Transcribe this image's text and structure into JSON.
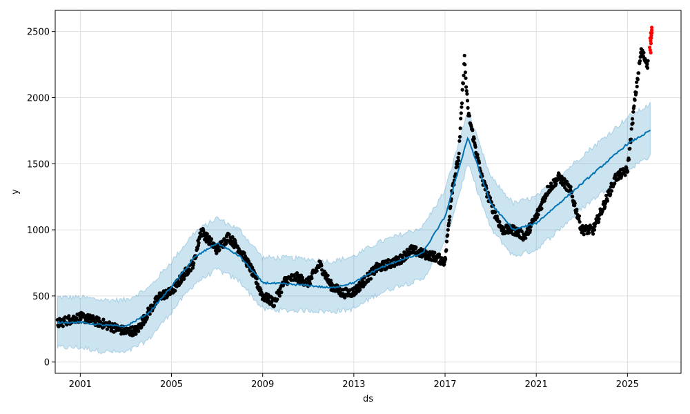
{
  "chart_data": {
    "type": "scatter",
    "xlabel": "ds",
    "ylabel": "y",
    "x_ticks": [
      "2001",
      "2005",
      "2009",
      "2013",
      "2017",
      "2021",
      "2025"
    ],
    "y_ticks": [
      0,
      500,
      1000,
      1500,
      2000,
      2500
    ],
    "xlim": [
      1999.9,
      2027.35
    ],
    "ylim": [
      -85,
      2660
    ],
    "grid": true,
    "colors": {
      "observed": "#000000",
      "forecast_line": "#0072b2",
      "uncertainty_band": "#0072b2",
      "recent_points": "#ff0000"
    },
    "series": [
      {
        "key": "observed",
        "x": [
          2000.0,
          2000.5,
          2001.0,
          2001.5,
          2002.0,
          2002.5,
          2003.0,
          2003.5,
          2004.0,
          2004.5,
          2005.0,
          2005.5,
          2006.0,
          2006.3,
          2006.5,
          2007.0,
          2007.5,
          2008.0,
          2008.5,
          2009.0,
          2009.5,
          2010.0,
          2010.5,
          2011.0,
          2011.5,
          2012.0,
          2012.5,
          2013.0,
          2013.5,
          2014.0,
          2014.5,
          2015.0,
          2015.5,
          2016.0,
          2016.5,
          2017.0,
          2017.3,
          2017.6,
          2017.85,
          2018.0,
          2018.3,
          2018.6,
          2019.0,
          2019.5,
          2020.0,
          2020.5,
          2021.0,
          2021.5,
          2022.0,
          2022.5,
          2023.0,
          2023.5,
          2024.0,
          2024.5,
          2025.0,
          2025.3,
          2025.6,
          2025.9
        ],
        "y": [
          290,
          320,
          340,
          320,
          290,
          260,
          230,
          240,
          380,
          500,
          530,
          650,
          760,
          1000,
          950,
          850,
          950,
          850,
          700,
          500,
          450,
          620,
          640,
          600,
          740,
          580,
          520,
          530,
          620,
          710,
          740,
          770,
          850,
          820,
          800,
          760,
          1300,
          1550,
          2300,
          1900,
          1650,
          1400,
          1200,
          1000,
          1000,
          950,
          1100,
          1300,
          1400,
          1300,
          1000,
          1000,
          1200,
          1400,
          1450,
          1950,
          2350,
          2250
        ]
      },
      {
        "key": "recent_points",
        "x": [
          2026.0,
          2026.02,
          2026.03,
          2026.05
        ],
        "y": [
          2380,
          2450,
          2490,
          2530
        ]
      },
      {
        "key": "forecast_line",
        "x": [
          2000.0,
          2001.0,
          2002.0,
          2003.0,
          2004.0,
          2005.0,
          2006.0,
          2007.0,
          2008.0,
          2009.0,
          2010.0,
          2011.0,
          2012.0,
          2013.0,
          2014.0,
          2015.0,
          2016.0,
          2017.0,
          2018.0,
          2019.0,
          2020.0,
          2021.0,
          2022.0,
          2023.0,
          2024.0,
          2025.0,
          2026.0
        ],
        "y": [
          300,
          300,
          280,
          270,
          370,
          570,
          790,
          900,
          800,
          600,
          590,
          580,
          560,
          600,
          700,
          770,
          820,
          1100,
          1700,
          1200,
          1000,
          1050,
          1200,
          1350,
          1500,
          1650,
          1750
        ]
      },
      {
        "key": "uncertainty_band",
        "x": [
          2000.0,
          2001.0,
          2002.0,
          2003.0,
          2004.0,
          2005.0,
          2006.0,
          2007.0,
          2008.0,
          2009.0,
          2010.0,
          2011.0,
          2012.0,
          2013.0,
          2014.0,
          2015.0,
          2016.0,
          2017.0,
          2018.0,
          2019.0,
          2020.0,
          2021.0,
          2022.0,
          2023.0,
          2024.0,
          2025.0,
          2026.0
        ],
        "lower": [
          110,
          110,
          80,
          70,
          170,
          380,
          590,
          700,
          610,
          400,
          390,
          390,
          380,
          400,
          510,
          580,
          620,
          900,
          1500,
          1010,
          800,
          850,
          1000,
          1160,
          1300,
          1450,
          1560
        ],
        "upper": [
          490,
          490,
          470,
          470,
          560,
          760,
          980,
          1090,
          1000,
          790,
          790,
          780,
          760,
          800,
          900,
          960,
          1020,
          1300,
          1900,
          1400,
          1200,
          1250,
          1400,
          1560,
          1700,
          1850,
          1950
        ]
      }
    ]
  }
}
